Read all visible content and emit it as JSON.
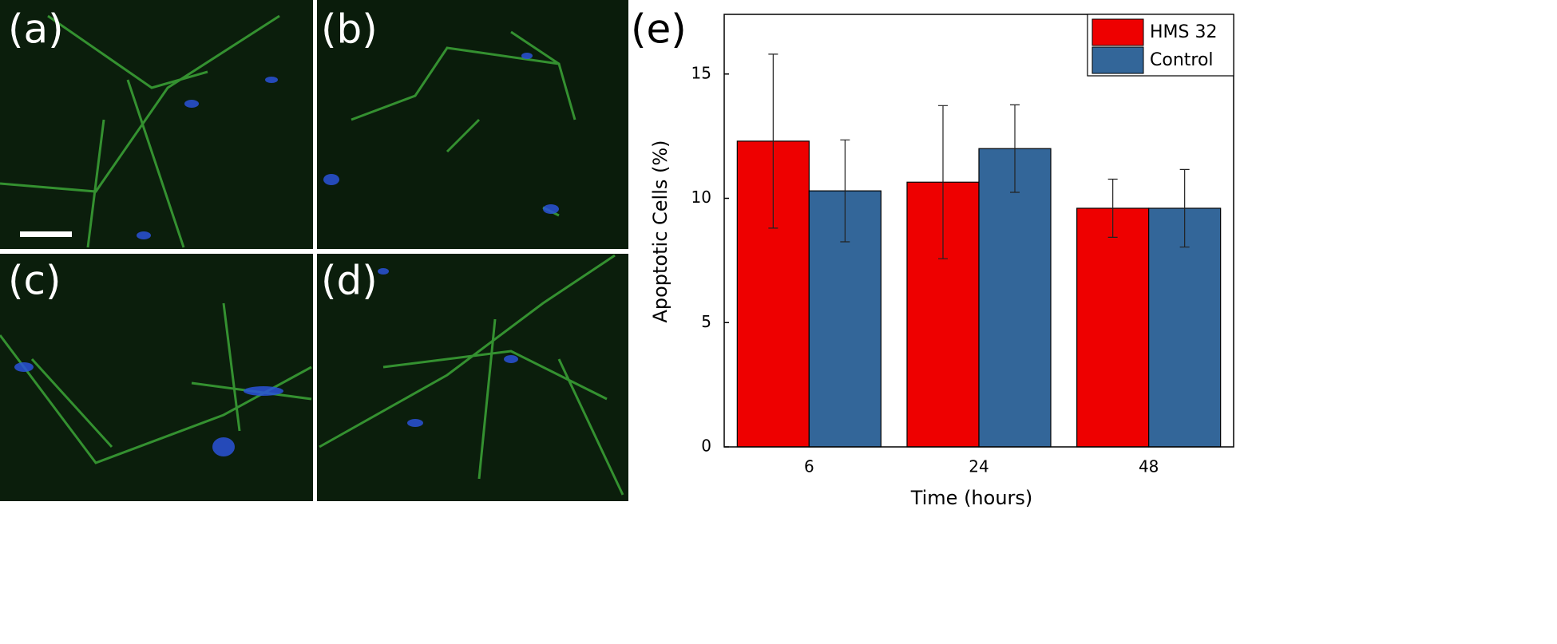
{
  "panels": [
    {
      "label": "(a)"
    },
    {
      "label": "(b)"
    },
    {
      "label": "(c)"
    },
    {
      "label": "(d)"
    }
  ],
  "chart_data": {
    "type": "bar",
    "panel_label": "(e)",
    "x_label": "Time (hours)",
    "y_label": "Apoptotic Cells (%)",
    "categories": [
      "6",
      "24",
      "48"
    ],
    "series": [
      {
        "name": "HMS 32",
        "color": "#ee0000",
        "values": [
          12.3,
          10.65,
          9.6
        ],
        "errors": [
          3.5,
          3.08,
          1.17
        ]
      },
      {
        "name": "Control",
        "color": "#336699",
        "values": [
          10.3,
          12.0,
          9.6
        ],
        "errors": [
          2.05,
          1.76,
          1.56
        ]
      }
    ],
    "ylim": [
      0,
      17.4
    ],
    "yticks": [
      0,
      5,
      10,
      15
    ],
    "legend": "upper right"
  }
}
